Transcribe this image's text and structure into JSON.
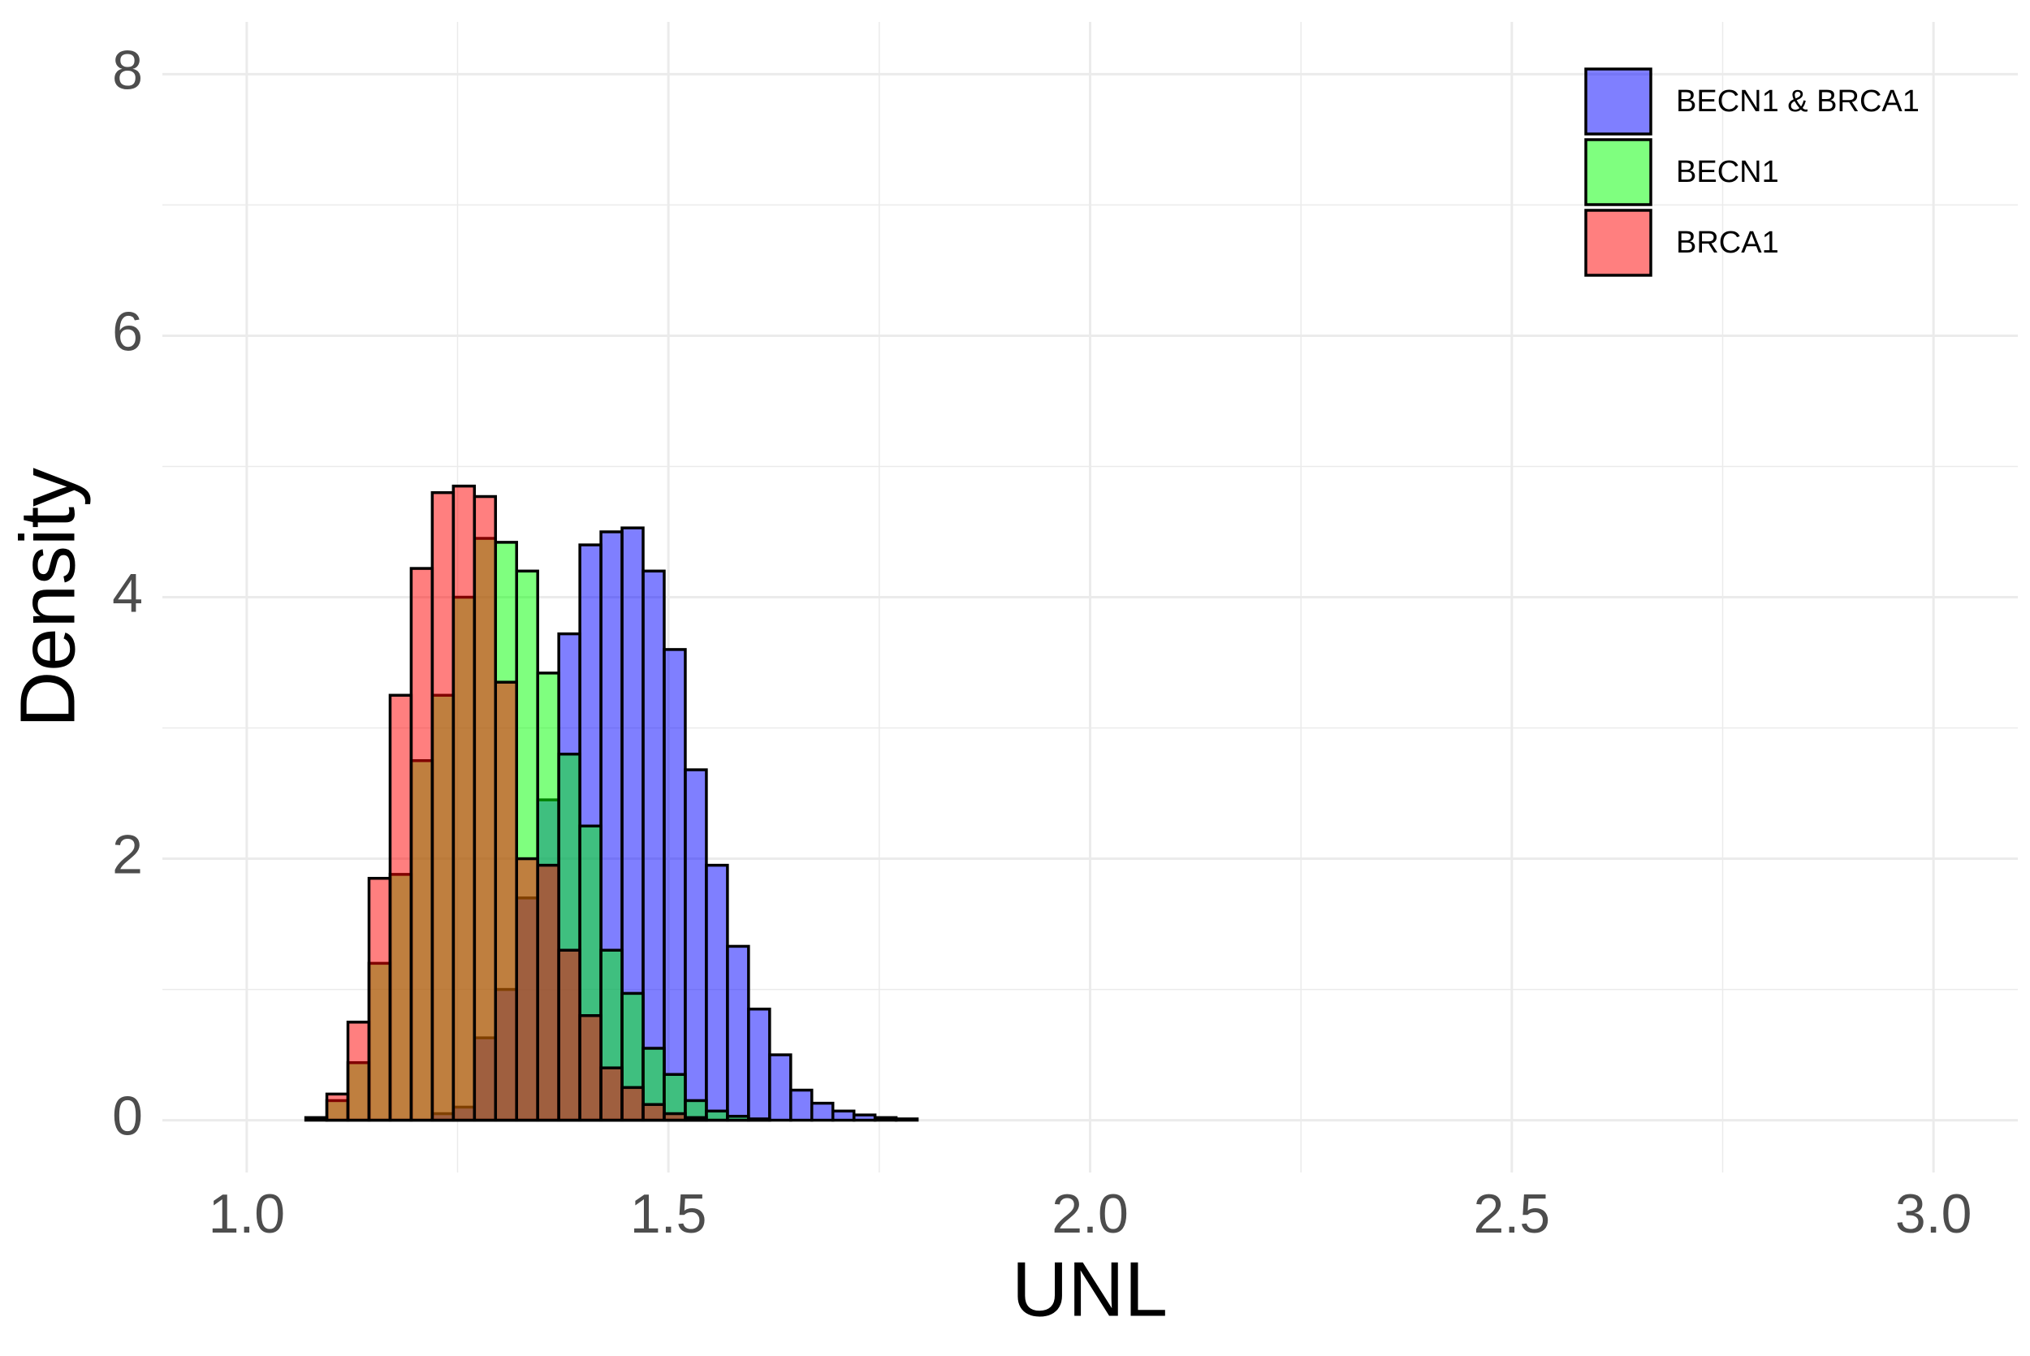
{
  "chart_data": {
    "type": "histogram",
    "x_label": "UNL",
    "y_label": "Density",
    "bins": [
      1.045,
      1.07,
      1.095,
      1.12,
      1.145,
      1.17,
      1.195,
      1.22,
      1.245,
      1.27,
      1.295,
      1.32,
      1.345,
      1.37,
      1.395,
      1.42,
      1.445,
      1.47,
      1.495,
      1.52,
      1.545,
      1.57,
      1.595,
      1.62,
      1.645,
      1.67,
      1.695,
      1.72,
      1.745,
      1.77,
      1.795
    ],
    "series": [
      {
        "name": "BECN1 & BRCA1",
        "color": "#0000ff",
        "values": [
          0,
          0,
          0,
          0,
          0,
          0,
          0,
          0.05,
          0.1,
          0.63,
          1.0,
          1.7,
          2.45,
          3.72,
          4.4,
          4.5,
          4.53,
          4.2,
          3.6,
          2.68,
          1.95,
          1.33,
          0.85,
          0.5,
          0.23,
          0.13,
          0.07,
          0.04,
          0.02,
          0.01
        ]
      },
      {
        "name": "BECN1",
        "color": "#00ff00",
        "values": [
          0,
          0,
          0.15,
          0.44,
          1.2,
          1.88,
          2.75,
          3.25,
          4.0,
          4.45,
          4.42,
          4.2,
          3.42,
          2.8,
          2.25,
          1.3,
          0.97,
          0.55,
          0.35,
          0.15,
          0.07,
          0.03,
          0.01,
          0,
          0,
          0,
          0,
          0,
          0,
          0
        ]
      },
      {
        "name": "BRCA1",
        "color": "#ff0000",
        "values": [
          0,
          0.02,
          0.2,
          0.75,
          1.85,
          3.25,
          4.22,
          4.8,
          4.85,
          4.77,
          3.35,
          2.0,
          1.95,
          1.3,
          0.8,
          0.4,
          0.25,
          0.12,
          0.05,
          0.02,
          0,
          0,
          0,
          0,
          0,
          0,
          0,
          0,
          0,
          0
        ]
      }
    ],
    "opacity": 0.5,
    "xlim": [
      0.9,
      3.1
    ],
    "ylim": [
      -0.4,
      8.4
    ],
    "xticks": [
      {
        "value": 1,
        "label": "1.0"
      },
      {
        "value": 1.5,
        "label": "1.5"
      },
      {
        "value": 2,
        "label": "2.0"
      },
      {
        "value": 2.5,
        "label": "2.5"
      },
      {
        "value": 3,
        "label": "3.0"
      }
    ],
    "yticks": [
      0,
      2,
      4,
      6,
      8
    ],
    "grid": true,
    "minor_grid": true,
    "legend": "top-right"
  }
}
